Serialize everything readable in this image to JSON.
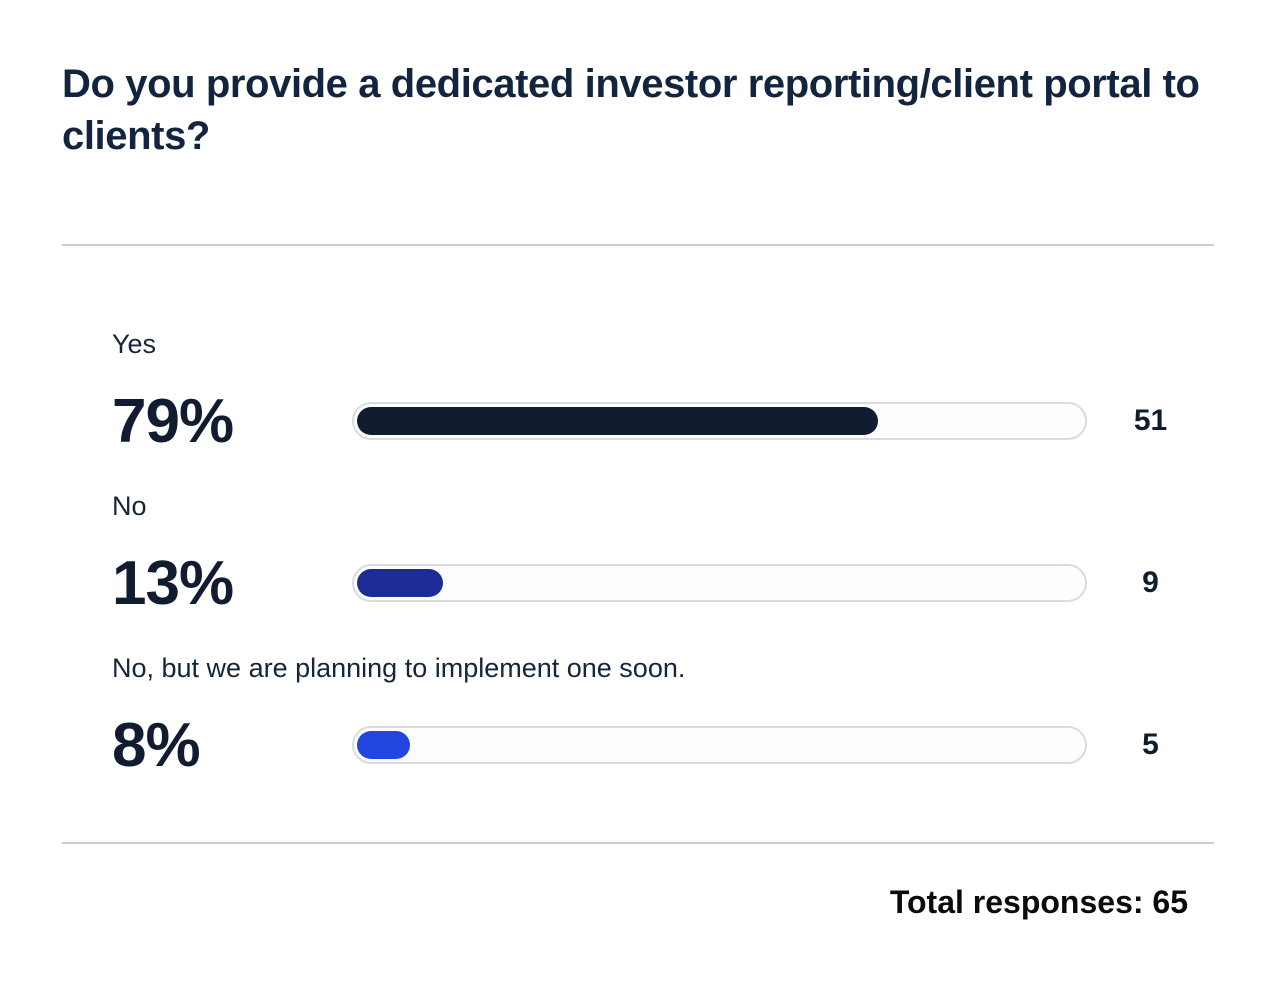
{
  "title": "Do you provide a dedicated investor reporting/client portal to clients?",
  "chart_data": {
    "type": "bar",
    "title": "Do you provide a dedicated investor reporting/client portal to clients?",
    "categories": [
      "Yes",
      "No",
      "No, but we are planning to implement one soon."
    ],
    "values_percent": [
      79,
      13,
      8
    ],
    "counts": [
      51,
      9,
      5
    ],
    "total_responses": 65,
    "orientation": "horizontal",
    "xlim_percent": [
      0,
      100
    ],
    "rows": [
      {
        "label": "Yes",
        "percent_text": "79%",
        "percent_value": 79,
        "count_text": "51",
        "fill_color": "#121C31"
      },
      {
        "label": "No",
        "percent_text": "13%",
        "percent_value": 13,
        "count_text": "9",
        "fill_color": "#1D2B97"
      },
      {
        "label": "No, but we are planning to implement one soon.",
        "percent_text": "8%",
        "percent_value": 8,
        "count_text": "5",
        "fill_color": "#2046DF"
      }
    ]
  },
  "footer": {
    "total_label": "Total responses: 65"
  },
  "colors": {
    "title_text": "#13253E",
    "label_text": "#14253C",
    "number_text": "#121C31",
    "bar_yes": "#121C31",
    "bar_no": "#1D2B97",
    "bar_planning": "#2046DF",
    "track_background": "#FDFDFE",
    "track_border": "#D8DBE0",
    "divider": "#C9CCD2",
    "total_text": "#0B0B0E"
  }
}
